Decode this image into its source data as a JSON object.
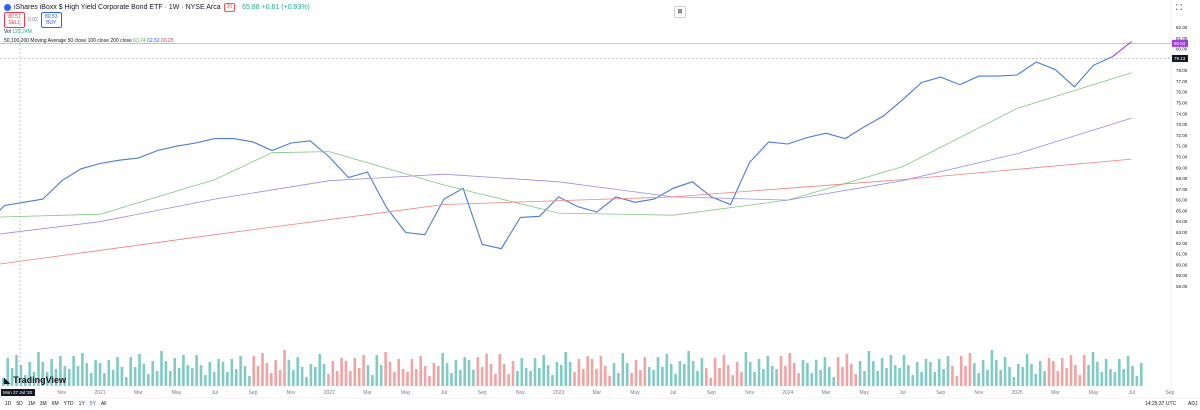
{
  "header": {
    "title": "iShares iBoxx $ High Yield Corporate Bond ETF · 1W · NYSE Arca",
    "badge": "30",
    "ohlc": "65.88 +0.61 (+0.93%)"
  },
  "quote": {
    "sell_price": "80.51",
    "sell_label": "SELL",
    "spread": "0.02",
    "buy_price": "80.53",
    "buy_label": "BUY"
  },
  "volume_legend": {
    "label": "Vol",
    "value": "129.24M"
  },
  "ma_legend": {
    "label": "50,100,200 Moving Average 50 close 100 close 200 close",
    "ma50": "63.74",
    "ma100": "62.52",
    "ma200": "60.25"
  },
  "price_axis": {
    "ticks": [
      "82.00",
      "81.00",
      "80.00",
      "79.00",
      "78.00",
      "77.00",
      "76.00",
      "75.00",
      "74.00",
      "73.00",
      "72.00",
      "71.00",
      "70.00",
      "69.00",
      "68.00",
      "67.00",
      "66.00",
      "65.00",
      "64.00",
      "63.00",
      "62.00",
      "61.00",
      "60.00",
      "59.00",
      "58.00"
    ],
    "last_price_label": "80.53",
    "crosshair_label": "79.13"
  },
  "time_axis": {
    "labels": [
      "Sep",
      "Nov",
      "2021",
      "Mar",
      "May",
      "Jul",
      "Sep",
      "Nov",
      "2022",
      "Mar",
      "May",
      "Jul",
      "Sep",
      "Nov",
      "2023",
      "Mar",
      "May",
      "Jul",
      "Sep",
      "Nov",
      "2024",
      "Mar",
      "May",
      "Jul",
      "Sep",
      "Nov",
      "2025",
      "Mar",
      "May",
      "Jul",
      "Sep"
    ],
    "crosshair_label": "Mon 27 Jul '20"
  },
  "timeframes": [
    "1D",
    "5D",
    "1M",
    "3M",
    "6M",
    "YTD",
    "1Y",
    "5Y",
    "All"
  ],
  "active_timeframe": "5Y",
  "clock": "14:25:37 UTC",
  "adj_label": "ADJ",
  "brand": "TradingView",
  "colors": {
    "price_line": "#4a7bd8",
    "price_line_recent": "#a43de0",
    "ma50": "#81c784",
    "ma100": "#9a8ee6",
    "ma200": "#f08080",
    "vol_up": "#80cbc4",
    "vol_down": "#f4a3a3"
  },
  "chart_data": {
    "type": "line",
    "title": "iShares iBoxx $ High Yield Corporate Bond ETF · 1W · NYSE Arca",
    "xlabel": "",
    "ylabel": "",
    "x_range": [
      "2020-07-27",
      "2025-07-14"
    ],
    "ylim": [
      58,
      82
    ],
    "grid": false,
    "series": [
      {
        "name": "Price",
        "x": [
          "2020-07",
          "2020-08",
          "2020-09",
          "2020-10",
          "2020-11",
          "2020-12",
          "2021-01",
          "2021-02",
          "2021-03",
          "2021-04",
          "2021-05",
          "2021-06",
          "2021-07",
          "2021-08",
          "2021-09",
          "2021-10",
          "2021-11",
          "2021-12",
          "2022-01",
          "2022-02",
          "2022-03",
          "2022-04",
          "2022-05",
          "2022-06",
          "2022-07",
          "2022-08",
          "2022-09",
          "2022-10",
          "2022-11",
          "2022-12",
          "2023-01",
          "2023-02",
          "2023-03",
          "2023-04",
          "2023-05",
          "2023-06",
          "2023-07",
          "2023-08",
          "2023-09",
          "2023-10",
          "2023-11",
          "2023-12",
          "2024-01",
          "2024-02",
          "2024-03",
          "2024-04",
          "2024-05",
          "2024-06",
          "2024-07",
          "2024-08",
          "2024-09",
          "2024-10",
          "2024-11",
          "2024-12",
          "2025-01",
          "2025-02",
          "2025-03",
          "2025-04",
          "2025-05",
          "2025-06",
          "2025-07"
        ],
        "values": [
          63.7,
          65.5,
          65.8,
          66.1,
          67.8,
          68.9,
          69.4,
          69.7,
          69.9,
          70.6,
          71.0,
          71.3,
          71.7,
          71.7,
          71.4,
          70.6,
          71.3,
          71.5,
          70.0,
          68.1,
          68.6,
          65.3,
          63.0,
          62.8,
          66.1,
          67.1,
          61.9,
          61.5,
          64.4,
          64.5,
          66.3,
          65.4,
          64.9,
          66.3,
          65.8,
          66.1,
          67.1,
          67.7,
          66.3,
          65.6,
          69.5,
          71.4,
          71.2,
          71.8,
          72.2,
          71.7,
          72.8,
          73.8,
          75.3,
          76.9,
          77.4,
          76.7,
          77.5,
          77.5,
          77.6,
          78.8,
          78.1,
          76.5,
          78.5,
          79.3,
          80.7
        ]
      },
      {
        "name": "MA 50",
        "x": [
          "2020-07",
          "2021-01",
          "2021-07",
          "2021-10",
          "2022-01",
          "2022-07",
          "2023-01",
          "2023-07",
          "2024-01",
          "2024-07",
          "2025-01",
          "2025-07"
        ],
        "values": [
          64.4,
          64.7,
          67.9,
          70.4,
          70.5,
          67.4,
          64.8,
          64.6,
          66.0,
          69.1,
          74.5,
          77.8
        ]
      },
      {
        "name": "MA 100",
        "x": [
          "2020-07",
          "2021-01",
          "2021-07",
          "2022-01",
          "2022-07",
          "2023-01",
          "2023-07",
          "2024-01",
          "2024-07",
          "2025-01",
          "2025-07"
        ],
        "values": [
          62.7,
          64.0,
          66.1,
          67.8,
          68.4,
          67.7,
          66.3,
          66.0,
          67.8,
          70.3,
          73.6
        ]
      },
      {
        "name": "MA 200",
        "x": [
          "2020-07",
          "2021-07",
          "2022-07",
          "2023-07",
          "2024-07",
          "2025-07"
        ],
        "values": [
          59.9,
          62.8,
          65.6,
          66.3,
          67.9,
          69.8
        ]
      }
    ]
  }
}
